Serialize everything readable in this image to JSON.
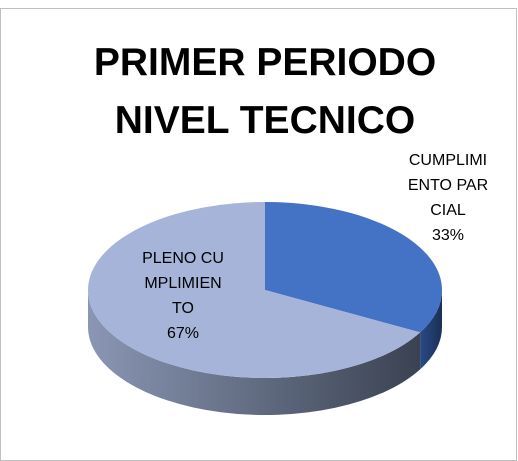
{
  "chart_data": {
    "type": "pie",
    "title": "PRIMER PERIODO NIVEL TECNICO",
    "categories": [
      "CUMPLIMIENTO PARCIAL",
      "PLENO CUMPLIMIENTO"
    ],
    "values": [
      33,
      67
    ],
    "value_labels": [
      "33%",
      "67%"
    ],
    "colors": [
      "#4472c4",
      "#a5b4d8"
    ]
  }
}
